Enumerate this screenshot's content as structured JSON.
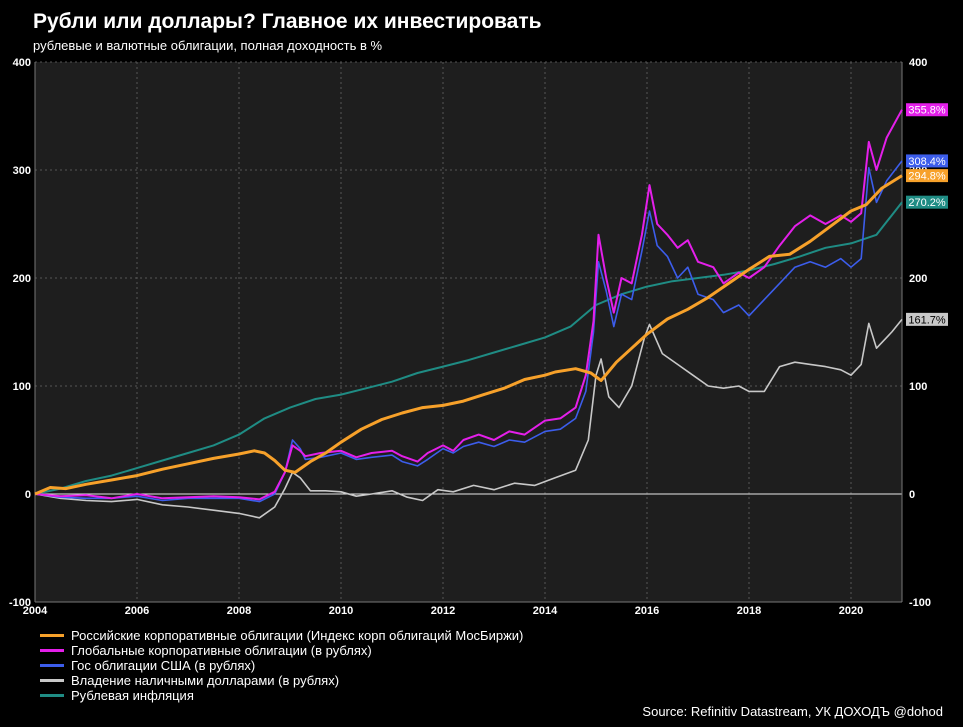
{
  "title": "Рубли или доллары? Главное их инвестировать",
  "subtitle": "рублевые и валютные облигации, полная доходность в %",
  "source": "Source: Refinitiv Datastream, УК ДОХОДЪ @dohod",
  "chart_data": {
    "type": "line",
    "title": "Рубли или доллары? Главное их инвестировать",
    "subtitle": "рублевые и валютные облигации, полная доходность в %",
    "xlabel": "",
    "ylabel": "",
    "xlim": [
      2004.0,
      2021.0
    ],
    "ylim": [
      -100,
      400
    ],
    "x_ticks": [
      2004,
      2006,
      2008,
      2010,
      2012,
      2014,
      2016,
      2018,
      2020
    ],
    "y_ticks": [
      -100,
      0,
      100,
      200,
      300,
      400
    ],
    "grid": true,
    "legend_position": "bottom-left",
    "series": [
      {
        "name": "Российские корпоративные облигации (Индекс корп облигаций МосБиржи)",
        "color": "#F7A12A",
        "end_label": "294.8%",
        "points": [
          [
            2004.0,
            0
          ],
          [
            2004.3,
            6
          ],
          [
            2004.6,
            5
          ],
          [
            2005.0,
            9
          ],
          [
            2005.5,
            13
          ],
          [
            2006.0,
            17
          ],
          [
            2006.5,
            23
          ],
          [
            2007.0,
            28
          ],
          [
            2007.5,
            33
          ],
          [
            2008.0,
            37
          ],
          [
            2008.3,
            40
          ],
          [
            2008.5,
            38
          ],
          [
            2008.7,
            31
          ],
          [
            2008.9,
            22
          ],
          [
            2009.1,
            20
          ],
          [
            2009.4,
            30
          ],
          [
            2009.7,
            38
          ],
          [
            2010.0,
            48
          ],
          [
            2010.4,
            60
          ],
          [
            2010.8,
            69
          ],
          [
            2011.2,
            75
          ],
          [
            2011.6,
            80
          ],
          [
            2012.0,
            82
          ],
          [
            2012.4,
            86
          ],
          [
            2012.8,
            92
          ],
          [
            2013.2,
            98
          ],
          [
            2013.6,
            106
          ],
          [
            2014.0,
            110
          ],
          [
            2014.2,
            113
          ],
          [
            2014.6,
            116
          ],
          [
            2014.9,
            112
          ],
          [
            2015.1,
            105
          ],
          [
            2015.4,
            122
          ],
          [
            2015.7,
            135
          ],
          [
            2016.0,
            148
          ],
          [
            2016.4,
            162
          ],
          [
            2016.8,
            171
          ],
          [
            2017.2,
            182
          ],
          [
            2017.6,
            195
          ],
          [
            2018.0,
            208
          ],
          [
            2018.4,
            220
          ],
          [
            2018.8,
            222
          ],
          [
            2019.2,
            234
          ],
          [
            2019.6,
            248
          ],
          [
            2020.0,
            262
          ],
          [
            2020.3,
            268
          ],
          [
            2020.6,
            283
          ],
          [
            2021.0,
            294.8
          ]
        ]
      },
      {
        "name": "Глобальные корпоративные облигации (в рублях)",
        "color": "#E41FEA",
        "end_label": "355.8%",
        "points": [
          [
            2004.0,
            0
          ],
          [
            2004.5,
            -2
          ],
          [
            2005.0,
            -1
          ],
          [
            2005.5,
            -4
          ],
          [
            2006.0,
            0
          ],
          [
            2006.5,
            -4
          ],
          [
            2007.0,
            -3
          ],
          [
            2007.5,
            -2
          ],
          [
            2008.0,
            -3
          ],
          [
            2008.4,
            -5
          ],
          [
            2008.7,
            2
          ],
          [
            2008.9,
            20
          ],
          [
            2009.05,
            45
          ],
          [
            2009.2,
            40
          ],
          [
            2009.3,
            35
          ],
          [
            2009.6,
            38
          ],
          [
            2010.0,
            40
          ],
          [
            2010.3,
            34
          ],
          [
            2010.6,
            38
          ],
          [
            2011.0,
            40
          ],
          [
            2011.2,
            35
          ],
          [
            2011.5,
            30
          ],
          [
            2011.7,
            38
          ],
          [
            2012.0,
            45
          ],
          [
            2012.2,
            40
          ],
          [
            2012.4,
            50
          ],
          [
            2012.7,
            55
          ],
          [
            2013.0,
            50
          ],
          [
            2013.3,
            58
          ],
          [
            2013.6,
            55
          ],
          [
            2014.0,
            68
          ],
          [
            2014.3,
            70
          ],
          [
            2014.6,
            80
          ],
          [
            2014.8,
            110
          ],
          [
            2014.95,
            160
          ],
          [
            2015.05,
            240
          ],
          [
            2015.2,
            200
          ],
          [
            2015.35,
            168
          ],
          [
            2015.5,
            200
          ],
          [
            2015.7,
            195
          ],
          [
            2015.9,
            240
          ],
          [
            2016.05,
            286
          ],
          [
            2016.2,
            250
          ],
          [
            2016.4,
            240
          ],
          [
            2016.6,
            228
          ],
          [
            2016.8,
            235
          ],
          [
            2017.0,
            215
          ],
          [
            2017.3,
            210
          ],
          [
            2017.5,
            195
          ],
          [
            2017.8,
            205
          ],
          [
            2018.0,
            200
          ],
          [
            2018.3,
            210
          ],
          [
            2018.6,
            230
          ],
          [
            2018.9,
            248
          ],
          [
            2019.2,
            258
          ],
          [
            2019.5,
            250
          ],
          [
            2019.8,
            258
          ],
          [
            2020.0,
            252
          ],
          [
            2020.2,
            260
          ],
          [
            2020.35,
            326
          ],
          [
            2020.5,
            300
          ],
          [
            2020.7,
            330
          ],
          [
            2021.0,
            355.8
          ]
        ]
      },
      {
        "name": "Гос облигации США (в рублях)",
        "color": "#3C5DEB",
        "end_label": "308.4%",
        "points": [
          [
            2004.0,
            0
          ],
          [
            2004.5,
            -3
          ],
          [
            2005.0,
            -4
          ],
          [
            2005.5,
            -4
          ],
          [
            2006.0,
            -2
          ],
          [
            2006.5,
            -6
          ],
          [
            2007.0,
            -4
          ],
          [
            2007.5,
            -4
          ],
          [
            2008.0,
            -4
          ],
          [
            2008.4,
            -7
          ],
          [
            2008.7,
            0
          ],
          [
            2008.9,
            20
          ],
          [
            2009.05,
            50
          ],
          [
            2009.2,
            42
          ],
          [
            2009.3,
            32
          ],
          [
            2009.6,
            34
          ],
          [
            2010.0,
            38
          ],
          [
            2010.3,
            32
          ],
          [
            2010.6,
            34
          ],
          [
            2011.0,
            36
          ],
          [
            2011.2,
            30
          ],
          [
            2011.5,
            26
          ],
          [
            2011.7,
            32
          ],
          [
            2012.0,
            42
          ],
          [
            2012.2,
            38
          ],
          [
            2012.4,
            44
          ],
          [
            2012.7,
            48
          ],
          [
            2013.0,
            44
          ],
          [
            2013.3,
            50
          ],
          [
            2013.6,
            48
          ],
          [
            2014.0,
            58
          ],
          [
            2014.3,
            60
          ],
          [
            2014.6,
            70
          ],
          [
            2014.8,
            95
          ],
          [
            2014.95,
            150
          ],
          [
            2015.05,
            215
          ],
          [
            2015.2,
            188
          ],
          [
            2015.35,
            155
          ],
          [
            2015.5,
            185
          ],
          [
            2015.7,
            180
          ],
          [
            2015.9,
            225
          ],
          [
            2016.05,
            262
          ],
          [
            2016.2,
            230
          ],
          [
            2016.4,
            220
          ],
          [
            2016.6,
            200
          ],
          [
            2016.8,
            210
          ],
          [
            2017.0,
            185
          ],
          [
            2017.3,
            180
          ],
          [
            2017.5,
            168
          ],
          [
            2017.8,
            175
          ],
          [
            2018.0,
            165
          ],
          [
            2018.3,
            180
          ],
          [
            2018.6,
            195
          ],
          [
            2018.9,
            210
          ],
          [
            2019.2,
            215
          ],
          [
            2019.5,
            210
          ],
          [
            2019.8,
            218
          ],
          [
            2020.0,
            210
          ],
          [
            2020.2,
            218
          ],
          [
            2020.35,
            302
          ],
          [
            2020.5,
            270
          ],
          [
            2020.7,
            290
          ],
          [
            2021.0,
            308.4
          ]
        ]
      },
      {
        "name": "Владение наличными долларами (в рублях)",
        "color": "#C8C8C8",
        "end_label": "161.7%",
        "points": [
          [
            2004.0,
            0
          ],
          [
            2004.5,
            -4
          ],
          [
            2005.0,
            -6
          ],
          [
            2005.5,
            -7
          ],
          [
            2006.0,
            -5
          ],
          [
            2006.5,
            -10
          ],
          [
            2007.0,
            -12
          ],
          [
            2007.5,
            -15
          ],
          [
            2008.0,
            -18
          ],
          [
            2008.4,
            -22
          ],
          [
            2008.7,
            -12
          ],
          [
            2008.9,
            5
          ],
          [
            2009.05,
            20
          ],
          [
            2009.2,
            15
          ],
          [
            2009.4,
            3
          ],
          [
            2009.7,
            3
          ],
          [
            2010.0,
            2
          ],
          [
            2010.3,
            -2
          ],
          [
            2010.6,
            0
          ],
          [
            2011.0,
            3
          ],
          [
            2011.3,
            -3
          ],
          [
            2011.6,
            -6
          ],
          [
            2011.9,
            4
          ],
          [
            2012.2,
            2
          ],
          [
            2012.6,
            8
          ],
          [
            2013.0,
            4
          ],
          [
            2013.4,
            10
          ],
          [
            2013.8,
            8
          ],
          [
            2014.2,
            15
          ],
          [
            2014.6,
            22
          ],
          [
            2014.85,
            50
          ],
          [
            2015.0,
            110
          ],
          [
            2015.1,
            125
          ],
          [
            2015.25,
            90
          ],
          [
            2015.45,
            80
          ],
          [
            2015.7,
            100
          ],
          [
            2015.95,
            145
          ],
          [
            2016.05,
            157
          ],
          [
            2016.3,
            130
          ],
          [
            2016.6,
            120
          ],
          [
            2016.9,
            110
          ],
          [
            2017.2,
            100
          ],
          [
            2017.5,
            98
          ],
          [
            2017.8,
            100
          ],
          [
            2018.0,
            95
          ],
          [
            2018.3,
            95
          ],
          [
            2018.6,
            118
          ],
          [
            2018.9,
            122
          ],
          [
            2019.2,
            120
          ],
          [
            2019.5,
            118
          ],
          [
            2019.8,
            115
          ],
          [
            2020.0,
            110
          ],
          [
            2020.2,
            120
          ],
          [
            2020.35,
            158
          ],
          [
            2020.5,
            135
          ],
          [
            2020.8,
            150
          ],
          [
            2021.0,
            161.7
          ]
        ]
      },
      {
        "name": "Рублевая инфляция",
        "color": "#1F8C84",
        "end_label": "270.2%",
        "points": [
          [
            2004.0,
            0
          ],
          [
            2004.5,
            5
          ],
          [
            2005.0,
            12
          ],
          [
            2005.5,
            17
          ],
          [
            2006.0,
            24
          ],
          [
            2006.5,
            31
          ],
          [
            2007.0,
            38
          ],
          [
            2007.5,
            45
          ],
          [
            2008.0,
            55
          ],
          [
            2008.5,
            70
          ],
          [
            2009.0,
            80
          ],
          [
            2009.5,
            88
          ],
          [
            2010.0,
            92
          ],
          [
            2010.5,
            98
          ],
          [
            2011.0,
            104
          ],
          [
            2011.5,
            112
          ],
          [
            2012.0,
            118
          ],
          [
            2012.5,
            124
          ],
          [
            2013.0,
            131
          ],
          [
            2013.5,
            138
          ],
          [
            2014.0,
            145
          ],
          [
            2014.5,
            155
          ],
          [
            2015.0,
            175
          ],
          [
            2015.5,
            185
          ],
          [
            2016.0,
            192
          ],
          [
            2016.5,
            197
          ],
          [
            2017.0,
            200
          ],
          [
            2017.5,
            203
          ],
          [
            2018.0,
            207
          ],
          [
            2018.5,
            213
          ],
          [
            2019.0,
            220
          ],
          [
            2019.5,
            228
          ],
          [
            2020.0,
            232
          ],
          [
            2020.5,
            240
          ],
          [
            2021.0,
            270.2
          ]
        ]
      }
    ]
  }
}
